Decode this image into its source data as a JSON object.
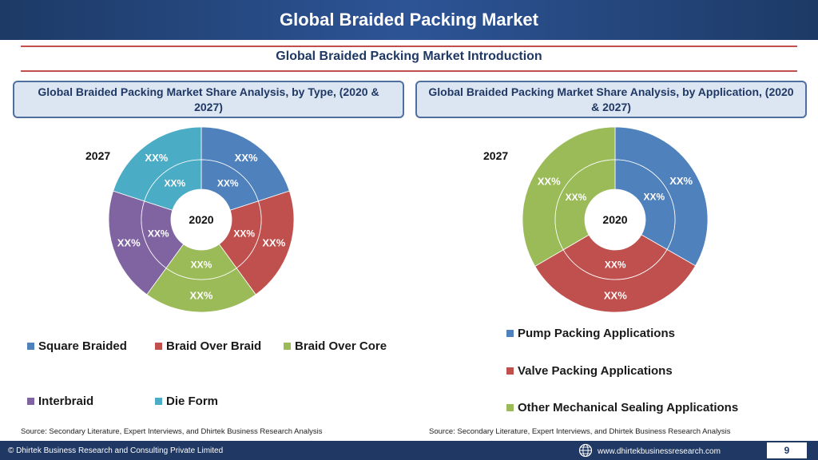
{
  "header": {
    "title": "Global Braided Packing Market"
  },
  "subtitle": "Global Braided Packing Market  Introduction",
  "panels": {
    "left_title": "Global Braided Packing Market  Share Analysis, by Type, (2020 & 2027)",
    "right_title": "Global Braided Packing Market  Share Analysis, by Application, (2020 & 2027)"
  },
  "chart_data": [
    {
      "type": "pie",
      "variant": "double-donut",
      "outer_year": "2027",
      "inner_year": "2020",
      "categories": [
        "Square Braided",
        "Braid Over Braid",
        "Braid Over Core",
        "Interbraid",
        "Die Form"
      ],
      "colors": [
        "#4f81bd",
        "#c0504d",
        "#9bbb59",
        "#8064a2",
        "#4bacc6"
      ],
      "series": [
        {
          "name": "2027",
          "values": [
            20,
            20,
            20,
            20,
            20
          ],
          "labels": [
            "XX%",
            "XX%",
            "XX%",
            "XX%",
            "XX%"
          ]
        },
        {
          "name": "2020",
          "values": [
            20,
            20,
            20,
            20,
            20
          ],
          "labels": [
            "XX%",
            "XX%",
            "XX%",
            "XX%",
            "XX%"
          ]
        }
      ]
    },
    {
      "type": "pie",
      "variant": "double-donut",
      "outer_year": "2027",
      "inner_year": "2020",
      "categories": [
        "Pump Packing Applications",
        "Valve Packing Applications",
        "Other Mechanical Sealing Applications"
      ],
      "colors": [
        "#4f81bd",
        "#c0504d",
        "#9bbb59"
      ],
      "series": [
        {
          "name": "2027",
          "values": [
            33.3,
            33.3,
            33.4
          ],
          "labels": [
            "XX%",
            "XX%",
            "XX%"
          ]
        },
        {
          "name": "2020",
          "values": [
            33.3,
            33.3,
            33.4
          ],
          "labels": [
            "XX%",
            "XX%",
            "XX%"
          ]
        }
      ]
    }
  ],
  "sources": {
    "left": "Source: Secondary Literature, Expert Interviews, and Dhirtek Business Research Analysis",
    "right": "Source: Secondary Literature, Expert Interviews, and Dhirtek Business Research Analysis"
  },
  "footer": {
    "copyright": "© Dhirtek Business Research and Consulting Private Limited",
    "website": "www.dhirtekbusinessresearch.com",
    "page_number": "9",
    "globe_icon": "globe-icon"
  }
}
